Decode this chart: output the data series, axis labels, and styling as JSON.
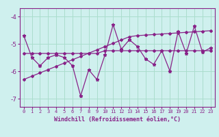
{
  "x": [
    0,
    1,
    2,
    3,
    4,
    5,
    6,
    7,
    8,
    9,
    10,
    11,
    12,
    13,
    14,
    15,
    16,
    17,
    18,
    19,
    20,
    21,
    22,
    23
  ],
  "y_main": [
    -4.7,
    -5.5,
    -5.8,
    -5.5,
    -5.4,
    -5.5,
    -5.8,
    -6.9,
    -5.95,
    -6.3,
    -5.4,
    -4.3,
    -5.2,
    -4.85,
    -5.1,
    -5.55,
    -5.75,
    -5.25,
    -6.0,
    -4.55,
    -5.35,
    -4.35,
    -5.3,
    -5.15
  ],
  "y_flat": [
    -5.35,
    -5.35,
    -5.35,
    -5.35,
    -5.35,
    -5.35,
    -5.35,
    -5.35,
    -5.35,
    -5.35,
    -5.25,
    -5.25,
    -5.25,
    -5.25,
    -5.25,
    -5.25,
    -5.25,
    -5.25,
    -5.25,
    -5.25,
    -5.25,
    -5.25,
    -5.25,
    -5.25
  ],
  "y_trend": [
    -6.3,
    -6.18,
    -6.06,
    -5.94,
    -5.82,
    -5.7,
    -5.58,
    -5.46,
    -5.34,
    -5.22,
    -5.1,
    -4.98,
    -4.86,
    -4.74,
    -4.7,
    -4.68,
    -4.66,
    -4.64,
    -4.62,
    -4.6,
    -4.58,
    -4.56,
    -4.54,
    -4.52
  ],
  "line_color": "#882288",
  "bg_color": "#cff0ee",
  "grid_color": "#aaddcc",
  "axis_color": "#882288",
  "xlabel": "Windchill (Refroidissement éolien,°C)",
  "ylim": [
    -7.3,
    -3.7
  ],
  "xlim": [
    -0.5,
    23.5
  ],
  "yticks": [
    -7,
    -6,
    -5,
    -4
  ],
  "xticks": [
    0,
    1,
    2,
    3,
    4,
    5,
    6,
    7,
    8,
    9,
    10,
    11,
    12,
    13,
    14,
    15,
    16,
    17,
    18,
    19,
    20,
    21,
    22,
    23
  ]
}
